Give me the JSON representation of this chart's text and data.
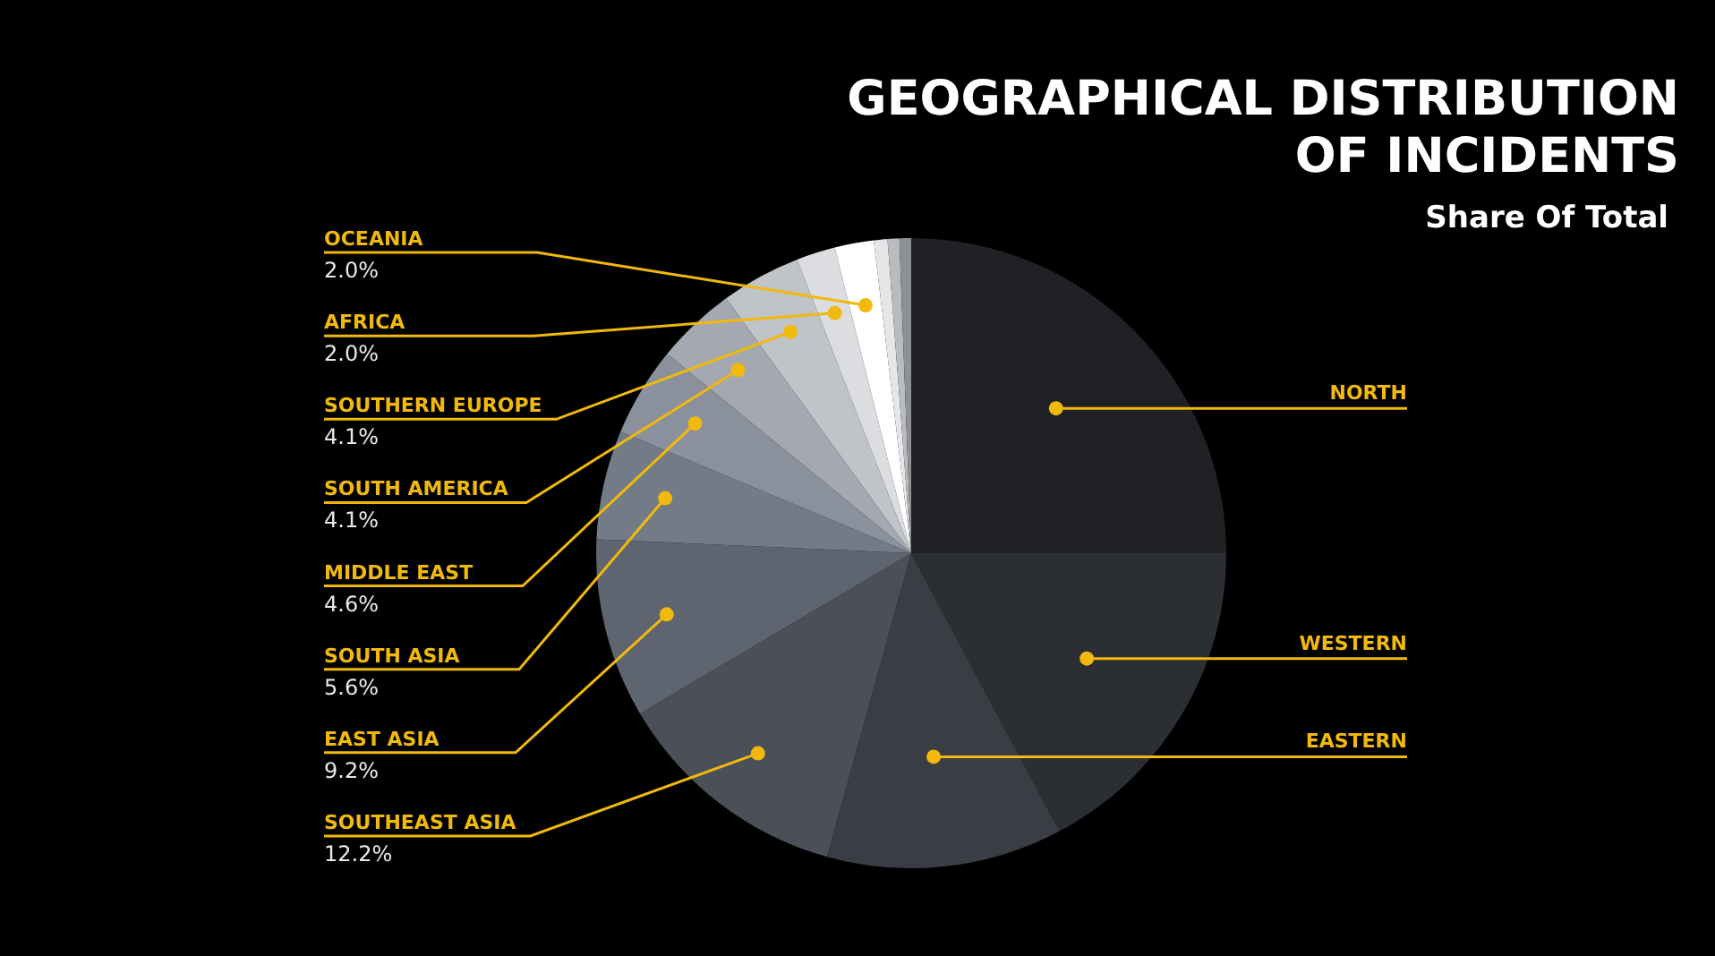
{
  "chart_data": {
    "type": "pie",
    "title": "GEOGRAPHICAL DISTRIBUTION OF INCIDENTS",
    "subtitle": "Share Of Total",
    "legend": false,
    "categories": [
      "NORTH",
      "WESTERN",
      "EASTERN",
      "SOUTHEAST ASIA",
      "EAST ASIA",
      "SOUTH ASIA",
      "MIDDLE EAST",
      "SOUTH AMERICA",
      "SOUTHERN EUROPE",
      "AFRICA",
      "OCEANIA",
      null,
      null,
      null
    ],
    "values": [
      25,
      17.2,
      12.1,
      12.2,
      9.2,
      5.6,
      4.6,
      4.1,
      4.1,
      2,
      2,
      0.7,
      0.6,
      0.6
    ],
    "value_labels": [
      null,
      null,
      null,
      "12.2%",
      "9.2%",
      "5.6%",
      "4.6%",
      "4.1%",
      "4.1%",
      "2.0%",
      "2.0%",
      null,
      null,
      null
    ],
    "colors": [
      "#202124",
      "#2b2e33",
      "#3a3d43",
      "#4b5058",
      "#5e6570",
      "#737b87",
      "#8a919c",
      "#a4a9b1",
      "#c0c3c8",
      "#dcdde0",
      "#ffffff",
      "#e6e6e6",
      "#b8bbbf",
      "#8d9196"
    ]
  }
}
